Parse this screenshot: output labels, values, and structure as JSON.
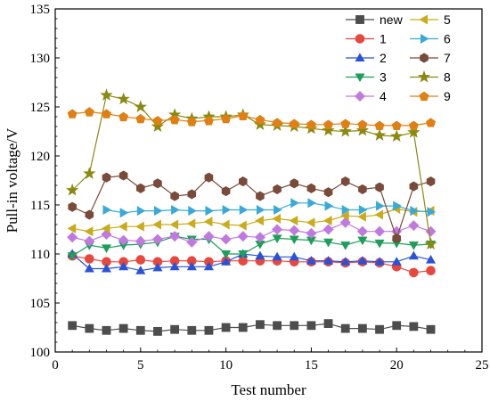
{
  "chart_data": {
    "type": "line",
    "xlabel": "Test number",
    "ylabel": "Pull-in voltage/V",
    "xlim": [
      0,
      25
    ],
    "ylim": [
      100,
      135
    ],
    "xticks": [
      0,
      5,
      10,
      15,
      20,
      25
    ],
    "yticks": [
      100,
      105,
      110,
      115,
      120,
      125,
      130,
      135
    ],
    "grid": false,
    "legend_position": "top-right",
    "x": [
      1,
      2,
      3,
      4,
      5,
      6,
      7,
      8,
      9,
      10,
      11,
      12,
      13,
      14,
      15,
      16,
      17,
      18,
      19,
      20,
      21,
      22
    ],
    "series": [
      {
        "name": "new",
        "marker": "square",
        "color": "#4d4d4d",
        "values": [
          102.7,
          102.4,
          102.2,
          102.4,
          102.2,
          102.1,
          102.3,
          102.2,
          102.2,
          102.5,
          102.5,
          102.8,
          102.7,
          102.7,
          102.7,
          102.9,
          102.4,
          102.4,
          102.3,
          102.7,
          102.6,
          102.3
        ]
      },
      {
        "name": "1",
        "marker": "circle",
        "color": "#e8473e",
        "values": [
          109.8,
          109.5,
          109.2,
          109.2,
          109.4,
          109.2,
          109.3,
          109.3,
          109.2,
          109.3,
          109.3,
          109.3,
          109.3,
          109.2,
          109.2,
          109.2,
          109.1,
          109.2,
          109.1,
          108.7,
          108.1,
          108.3
        ]
      },
      {
        "name": "2",
        "marker": "triangle-up",
        "color": "#2a52d6",
        "values": [
          110.0,
          108.5,
          108.5,
          108.7,
          108.3,
          108.6,
          108.7,
          108.7,
          108.7,
          109.2,
          110.0,
          109.8,
          109.7,
          109.7,
          109.3,
          109.3,
          109.2,
          109.3,
          109.2,
          109.2,
          109.8,
          109.4
        ]
      },
      {
        "name": "3",
        "marker": "triangle-down",
        "color": "#1e9e5a",
        "values": [
          109.8,
          110.9,
          110.6,
          110.9,
          111.0,
          111.2,
          111.8,
          111.5,
          111.5,
          110.0,
          110.0,
          111.0,
          111.6,
          111.5,
          111.4,
          111.2,
          110.9,
          111.4,
          111.1,
          111.1,
          110.9,
          111.0
        ]
      },
      {
        "name": "4",
        "marker": "diamond",
        "color": "#c179e0",
        "values": [
          111.7,
          111.3,
          112.0,
          111.4,
          111.3,
          111.5,
          111.8,
          111.2,
          111.8,
          111.5,
          111.8,
          111.7,
          112.5,
          112.4,
          112.1,
          112.5,
          113.2,
          112.3,
          112.3,
          112.3,
          112.9,
          112.3
        ]
      },
      {
        "name": "5",
        "marker": "triangle-left",
        "color": "#c9ab1c",
        "values": [
          112.6,
          112.3,
          112.6,
          112.8,
          112.8,
          113.0,
          113.0,
          113.1,
          113.3,
          113.0,
          112.9,
          113.4,
          113.6,
          113.4,
          113.2,
          113.4,
          113.9,
          113.8,
          114.0,
          114.6,
          114.3,
          114.4
        ]
      },
      {
        "name": "6",
        "marker": "triangle-right",
        "color": "#39a9d8",
        "values": [
          null,
          null,
          114.5,
          114.2,
          114.4,
          114.4,
          114.5,
          114.4,
          114.4,
          114.5,
          114.5,
          114.5,
          114.5,
          115.2,
          115.2,
          114.9,
          114.5,
          114.5,
          114.9,
          114.9,
          114.4,
          114.3
        ]
      },
      {
        "name": "7",
        "marker": "hexagon",
        "color": "#7a4a3a",
        "values": [
          114.8,
          114.0,
          117.8,
          118.0,
          116.7,
          117.2,
          115.9,
          116.1,
          117.8,
          116.4,
          117.4,
          115.9,
          116.6,
          117.2,
          116.7,
          116.3,
          117.4,
          116.6,
          116.8,
          111.6,
          116.9,
          117.4
        ]
      },
      {
        "name": "8",
        "marker": "star",
        "color": "#8a8a12",
        "values": [
          116.5,
          118.2,
          126.2,
          125.8,
          125.0,
          123.0,
          124.2,
          123.8,
          124.0,
          124.0,
          124.2,
          123.2,
          123.1,
          123.0,
          122.8,
          122.6,
          122.5,
          122.6,
          122.1,
          122.0,
          122.4,
          111.0
        ]
      },
      {
        "name": "9",
        "marker": "pentagon",
        "color": "#e07f12",
        "values": [
          124.3,
          124.5,
          124.3,
          124.0,
          123.8,
          123.6,
          123.7,
          123.5,
          123.6,
          123.8,
          124.1,
          123.7,
          123.4,
          123.3,
          123.2,
          123.2,
          123.3,
          123.2,
          123.1,
          123.1,
          123.1,
          123.4
        ]
      }
    ]
  }
}
